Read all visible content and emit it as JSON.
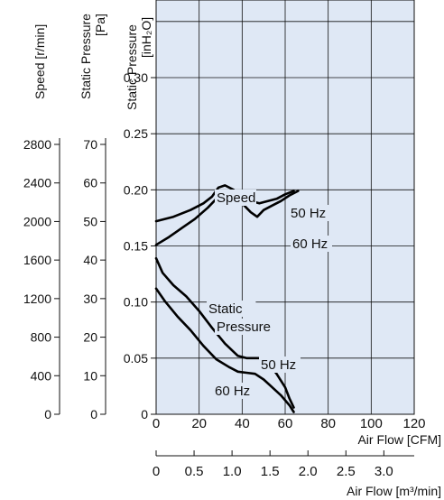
{
  "chart_data": {
    "type": "line",
    "plot": {
      "background": "#dfe8f5",
      "grid_color": "#111111",
      "line_color": "#000000",
      "grid": true
    },
    "x_axes": [
      {
        "id": "cfm",
        "label": "Air Flow [CFM]",
        "min": 0,
        "max": 120,
        "ticks": [
          0,
          20,
          40,
          60,
          80,
          100,
          120
        ],
        "tick_labels": [
          "0",
          "20",
          "40",
          "60",
          "80",
          "100",
          "120"
        ]
      },
      {
        "id": "m3",
        "label": "Air Flow [m³/min]",
        "min": 0,
        "max": 3.4,
        "ticks": [
          0,
          0.5,
          1.0,
          1.5,
          2.0,
          2.5,
          3.0
        ],
        "tick_labels": [
          "0",
          "0.5",
          "1.0",
          "1.5",
          "2.0",
          "2.5",
          "3.0"
        ]
      }
    ],
    "y_axes": [
      {
        "id": "speed",
        "label": "Speed [r/min]",
        "min": 0,
        "max": 2800,
        "ticks": [
          0,
          400,
          800,
          1200,
          1600,
          2000,
          2400,
          2800
        ],
        "tick_labels": [
          "0",
          "400",
          "800",
          "1200",
          "1600",
          "2000",
          "2400",
          "2800"
        ]
      },
      {
        "id": "pa",
        "label": "Static Pressure\n[Pa]",
        "min": 0,
        "max": 70,
        "ticks": [
          0,
          10,
          20,
          30,
          40,
          50,
          60,
          70
        ],
        "tick_labels": [
          "0",
          "10",
          "20",
          "30",
          "40",
          "50",
          "60",
          "70"
        ]
      },
      {
        "id": "inh2o",
        "label": "Static Pressure\n[inH₂O]",
        "min": 0,
        "max": 0.3,
        "ticks": [
          0,
          0.05,
          0.1,
          0.15,
          0.2,
          0.25,
          0.3
        ],
        "tick_labels": [
          "0",
          "0.05",
          "0.10",
          "0.15",
          "0.20",
          "0.25",
          "0.30"
        ]
      }
    ],
    "annotations": [
      {
        "id": "speed",
        "text": "Speed"
      },
      {
        "id": "static1",
        "text": "Static"
      },
      {
        "id": "static2",
        "text": "Pressure"
      },
      {
        "id": "s50",
        "text": "50 Hz"
      },
      {
        "id": "s60",
        "text": "60 Hz"
      },
      {
        "id": "p50",
        "text": "50 Hz"
      },
      {
        "id": "p60",
        "text": "60 Hz"
      }
    ],
    "series": [
      {
        "id": "speed-50hz",
        "x": [
          0,
          8,
          16,
          22,
          26,
          29,
          32,
          36,
          40,
          44,
          48,
          52,
          56,
          60,
          64
        ],
        "y": [
          0.172,
          0.176,
          0.182,
          0.188,
          0.194,
          0.202,
          0.204,
          0.2,
          0.192,
          0.19,
          0.188,
          0.19,
          0.192,
          0.196,
          0.199
        ]
      },
      {
        "id": "speed-60hz",
        "x": [
          0,
          6,
          12,
          18,
          24,
          28,
          32,
          36,
          40,
          44,
          47,
          50,
          54,
          58,
          62,
          66
        ],
        "y": [
          0.151,
          0.158,
          0.166,
          0.174,
          0.184,
          0.192,
          0.196,
          0.194,
          0.188,
          0.18,
          0.176,
          0.182,
          0.186,
          0.19,
          0.195,
          0.199
        ]
      },
      {
        "id": "pressure-50hz",
        "x": [
          0,
          3,
          8,
          14,
          20,
          26,
          32,
          38,
          42,
          48,
          52,
          56,
          60,
          62,
          64
        ],
        "y": [
          0.139,
          0.126,
          0.115,
          0.105,
          0.092,
          0.077,
          0.063,
          0.052,
          0.05,
          0.05,
          0.046,
          0.036,
          0.024,
          0.014,
          0.006
        ]
      },
      {
        "id": "pressure-60hz",
        "x": [
          0,
          4,
          10,
          16,
          22,
          28,
          34,
          38,
          42,
          46,
          50,
          54,
          58,
          62,
          64
        ],
        "y": [
          0.112,
          0.101,
          0.087,
          0.075,
          0.061,
          0.049,
          0.042,
          0.038,
          0.037,
          0.036,
          0.031,
          0.024,
          0.017,
          0.008,
          0.002
        ]
      }
    ]
  }
}
